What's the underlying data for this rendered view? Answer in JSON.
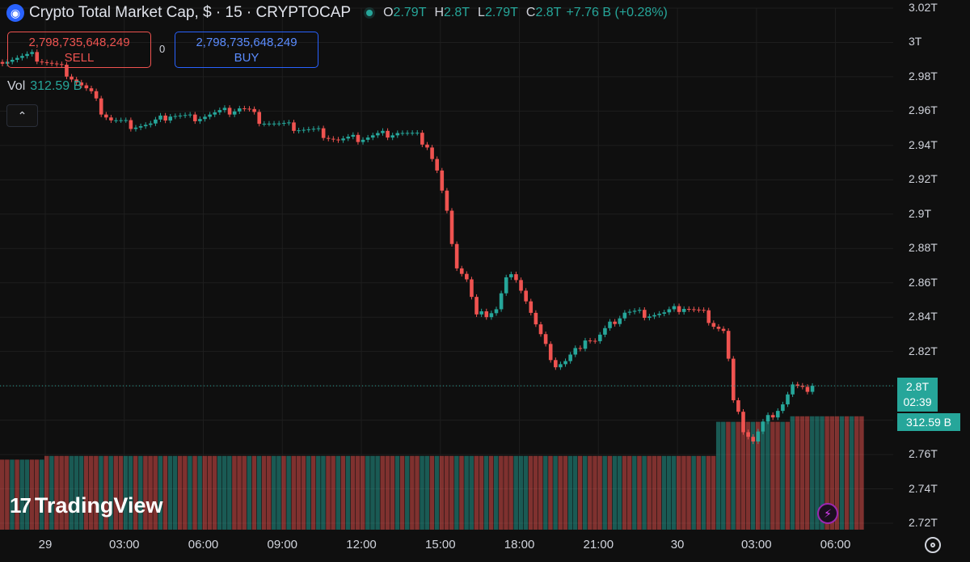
{
  "header": {
    "brand_icon": "crypto-cap-icon",
    "title": "Crypto Total Market Cap, $ · 15 · CRYPTOCAP",
    "ohlc": [
      {
        "key": "O",
        "value": "2.79T"
      },
      {
        "key": "H",
        "value": "2.8T"
      },
      {
        "key": "L",
        "value": "2.79T"
      },
      {
        "key": "C",
        "value": "2.8T"
      }
    ],
    "change": "+7.76 B (+0.28%)"
  },
  "trade": {
    "sell_price": "2,798,735,648,249",
    "sell_label": "SELL",
    "spread": "0",
    "buy_price": "2,798,735,648,249",
    "buy_label": "BUY"
  },
  "volume": {
    "label": "Vol",
    "value": "312.59 B"
  },
  "price_tag": {
    "price": "2.8T",
    "countdown": "02:39"
  },
  "volume_tag": "312.59 B",
  "logo_text": "TradingView",
  "colors": {
    "up": "#26a69a",
    "down": "#ef5350",
    "background": "#0f0f0f",
    "grid": "#1e1e1e"
  },
  "chart_data": {
    "type": "candlestick",
    "title": "Crypto Total Market Cap, $ · 15 · CRYPTOCAP",
    "interval": "15",
    "ylim": [
      2.71,
      3.02
    ],
    "yunit": "T",
    "y_ticks": [
      "3.02T",
      "3T",
      "2.98T",
      "2.96T",
      "2.94T",
      "2.92T",
      "2.9T",
      "2.88T",
      "2.86T",
      "2.84T",
      "2.82T",
      "2.8T",
      "2.78T",
      "2.76T",
      "2.74T",
      "2.72T"
    ],
    "x_ticks": [
      "29",
      "03:00",
      "06:00",
      "09:00",
      "12:00",
      "15:00",
      "18:00",
      "21:00",
      "30",
      "03:00",
      "06:00"
    ],
    "grid": true,
    "last_price": 2.8,
    "anchors": [
      [
        0,
        2.99
      ],
      [
        6,
        2.992
      ],
      [
        12,
        2.985
      ],
      [
        16,
        2.975
      ],
      [
        18,
        2.97
      ],
      [
        20,
        2.96
      ],
      [
        22,
        2.955
      ],
      [
        26,
        2.952
      ],
      [
        30,
        2.952
      ],
      [
        34,
        2.958
      ],
      [
        38,
        2.956
      ],
      [
        42,
        2.958
      ],
      [
        46,
        2.96
      ],
      [
        48,
        2.962
      ],
      [
        50,
        2.96
      ],
      [
        52,
        2.955
      ],
      [
        56,
        2.952
      ],
      [
        60,
        2.95
      ],
      [
        64,
        2.948
      ],
      [
        68,
        2.943
      ],
      [
        72,
        2.944
      ],
      [
        76,
        2.946
      ],
      [
        80,
        2.948
      ],
      [
        84,
        2.945
      ],
      [
        86,
        2.94
      ],
      [
        88,
        2.925
      ],
      [
        90,
        2.9
      ],
      [
        92,
        2.87
      ],
      [
        94,
        2.862
      ],
      [
        96,
        2.84
      ],
      [
        98,
        2.842
      ],
      [
        100,
        2.845
      ],
      [
        102,
        2.862
      ],
      [
        104,
        2.864
      ],
      [
        106,
        2.85
      ],
      [
        108,
        2.835
      ],
      [
        110,
        2.822
      ],
      [
        112,
        2.812
      ],
      [
        114,
        2.814
      ],
      [
        116,
        2.82
      ],
      [
        118,
        2.828
      ],
      [
        120,
        2.826
      ],
      [
        122,
        2.832
      ],
      [
        124,
        2.838
      ],
      [
        126,
        2.843
      ],
      [
        130,
        2.842
      ],
      [
        134,
        2.842
      ],
      [
        138,
        2.846
      ],
      [
        142,
        2.842
      ],
      [
        144,
        2.836
      ],
      [
        146,
        2.832
      ],
      [
        147,
        2.815
      ],
      [
        148,
        2.79
      ],
      [
        150,
        2.775
      ],
      [
        152,
        2.768
      ],
      [
        154,
        2.778
      ],
      [
        156,
        2.784
      ],
      [
        158,
        2.79
      ],
      [
        160,
        2.8
      ],
      [
        162,
        2.797
      ],
      [
        164,
        2.8
      ]
    ],
    "volume_segments": [
      {
        "bars": 9,
        "value": 0.76
      },
      {
        "bars": 136,
        "value": 0.8
      },
      {
        "bars": 15,
        "value": 1.17
      },
      {
        "bars": 15,
        "value": 1.23
      }
    ]
  }
}
